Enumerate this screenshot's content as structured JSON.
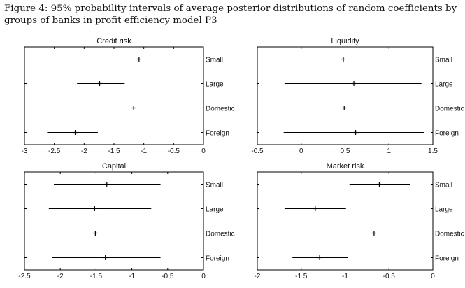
{
  "caption": {
    "line1": "Figure 4: 95% probability intervals of average posterior distributions of random coefficients by",
    "line2": "groups of banks in profit efficiency model P3"
  },
  "chart_data": [
    {
      "type": "interval",
      "title": "Credit risk",
      "xlim": [
        -3,
        0
      ],
      "xticks": [
        -3,
        -2.5,
        -2,
        -1.5,
        -1,
        -0.5,
        0
      ],
      "categories": [
        "Small",
        "Large",
        "Domestic",
        "Foreign"
      ],
      "intervals": [
        {
          "group": "Small",
          "low": -1.48,
          "high": -0.65,
          "mean": -1.08
        },
        {
          "group": "Large",
          "low": -2.12,
          "high": -1.32,
          "mean": -1.74
        },
        {
          "group": "Domestic",
          "low": -1.67,
          "high": -0.68,
          "mean": -1.17
        },
        {
          "group": "Foreign",
          "low": -2.62,
          "high": -1.77,
          "mean": -2.15
        }
      ]
    },
    {
      "type": "interval",
      "title": "Liquidity",
      "xlim": [
        -0.5,
        1.5
      ],
      "xticks": [
        -0.5,
        0,
        0.5,
        1,
        1.5
      ],
      "categories": [
        "Small",
        "Large",
        "Domestic",
        "Foreign"
      ],
      "intervals": [
        {
          "group": "Small",
          "low": -0.26,
          "high": 1.32,
          "mean": 0.48
        },
        {
          "group": "Large",
          "low": -0.19,
          "high": 1.37,
          "mean": 0.6
        },
        {
          "group": "Domestic",
          "low": -0.38,
          "high": 1.5,
          "mean": 0.49
        },
        {
          "group": "Foreign",
          "low": -0.2,
          "high": 1.4,
          "mean": 0.62
        }
      ]
    },
    {
      "type": "interval",
      "title": "Capital",
      "xlim": [
        -2.5,
        0
      ],
      "xticks": [
        -2.5,
        -2,
        -1.5,
        -1,
        -0.5,
        0
      ],
      "categories": [
        "Small",
        "Large",
        "Domestic",
        "Foreign"
      ],
      "intervals": [
        {
          "group": "Small",
          "low": -2.09,
          "high": -0.6,
          "mean": -1.35
        },
        {
          "group": "Large",
          "low": -2.16,
          "high": -0.73,
          "mean": -1.52
        },
        {
          "group": "Domestic",
          "low": -2.13,
          "high": -0.7,
          "mean": -1.51
        },
        {
          "group": "Foreign",
          "low": -2.11,
          "high": -0.6,
          "mean": -1.37
        }
      ]
    },
    {
      "type": "interval",
      "title": "Market risk",
      "xlim": [
        -2,
        0
      ],
      "xticks": [
        -2,
        -1.5,
        -1,
        -0.5,
        0
      ],
      "categories": [
        "Small",
        "Large",
        "Domestic",
        "Foreign"
      ],
      "intervals": [
        {
          "group": "Small",
          "low": -0.95,
          "high": -0.26,
          "mean": -0.61
        },
        {
          "group": "Large",
          "low": -1.69,
          "high": -0.99,
          "mean": -1.34
        },
        {
          "group": "Domestic",
          "low": -0.95,
          "high": -0.31,
          "mean": -0.67
        },
        {
          "group": "Foreign",
          "low": -1.6,
          "high": -0.97,
          "mean": -1.29
        }
      ]
    }
  ]
}
